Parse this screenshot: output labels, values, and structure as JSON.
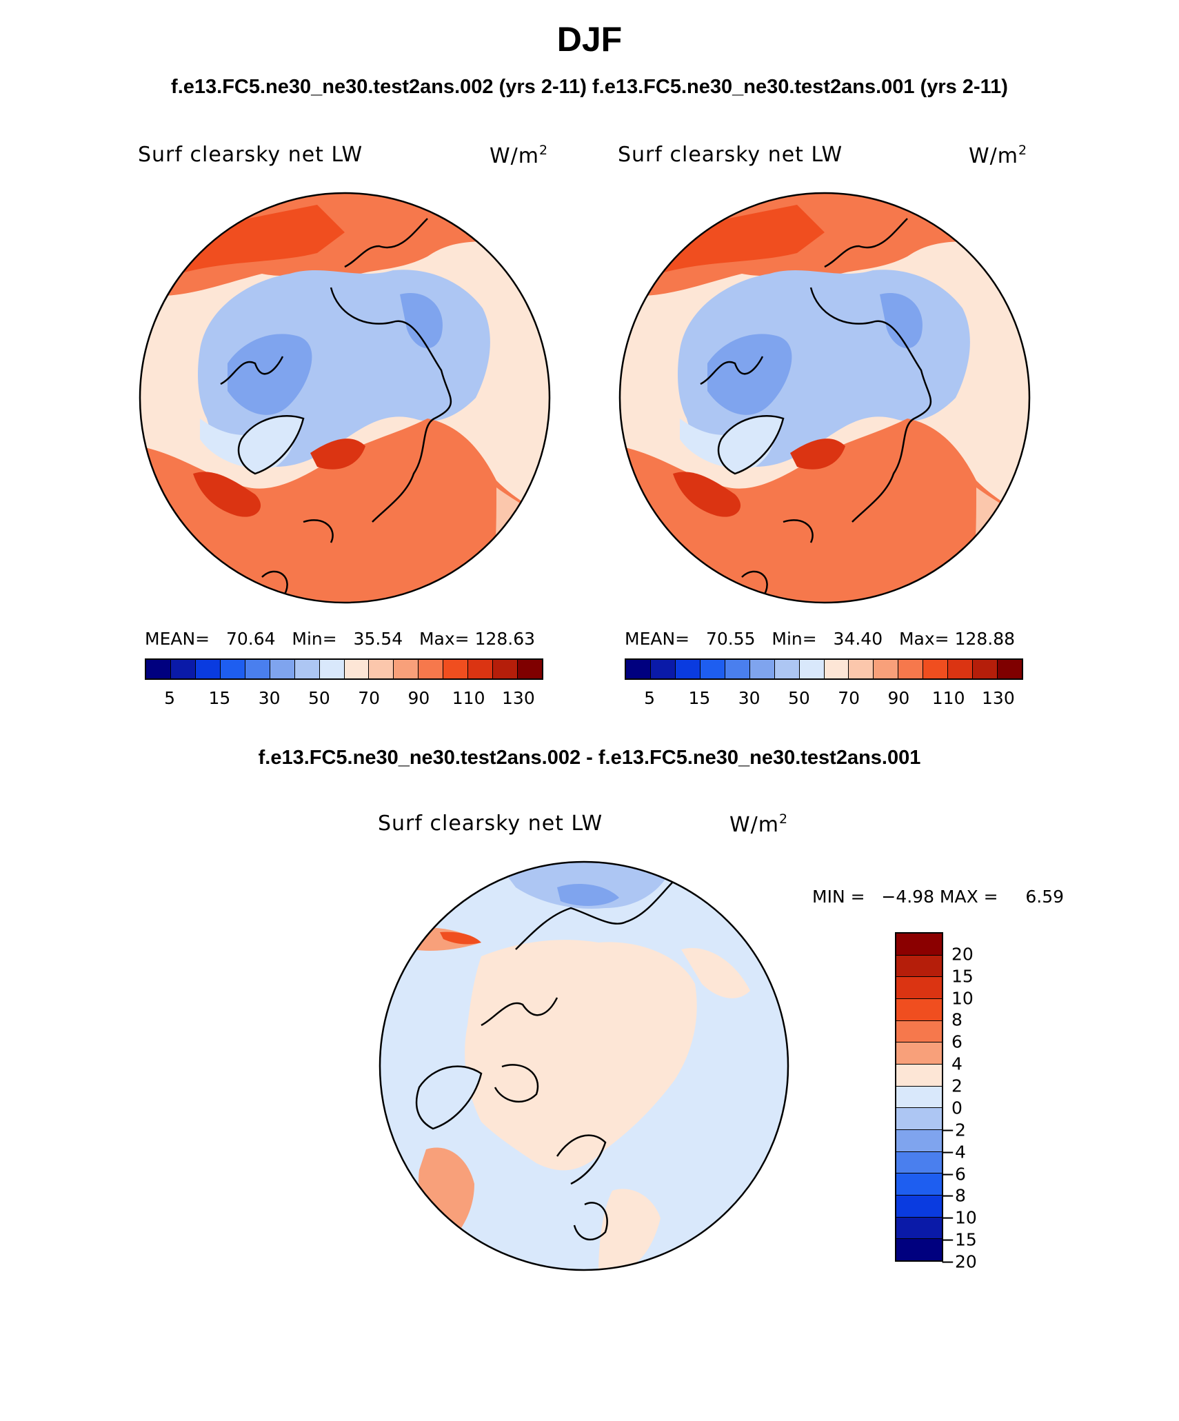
{
  "title": "DJF",
  "subtitle_top": "f.e13.FC5.ne30_ne30.test2ans.002 (yrs 2-11) f.e13.FC5.ne30_ne30.test2ans.001 (yrs 2-11)",
  "subtitle_diff": "f.e13.FC5.ne30_ne30.test2ans.002 - f.e13.FC5.ne30_ne30.test2ans.001",
  "panels": [
    {
      "variable": "Surf clearsky net LW",
      "units": "W/m",
      "units_exp": "2",
      "stats": {
        "mean_label": "MEAN=",
        "mean": "70.64",
        "min_label": "Min=",
        "min": "35.54",
        "max_label": "Max=",
        "max": "128.63"
      }
    },
    {
      "variable": "Surf clearsky net LW",
      "units": "W/m",
      "units_exp": "2",
      "stats": {
        "mean_label": "MEAN=",
        "mean": "70.55",
        "min_label": "Min=",
        "min": "34.40",
        "max_label": "Max=",
        "max": "128.88"
      }
    }
  ],
  "diff_panel": {
    "variable": "Surf clearsky net LW",
    "units": "W/m",
    "units_exp": "2",
    "minmax": "MIN =   −4.98 MAX =     6.59"
  },
  "colorbar_main": {
    "colors": [
      "#00007f",
      "#0a1aa8",
      "#0a3be0",
      "#1e5ef0",
      "#4a7fee",
      "#7fa4ee",
      "#adc6f3",
      "#d9e8fb",
      "#fde6d6",
      "#fbc7ac",
      "#f8a07a",
      "#f6784c",
      "#f04e1f",
      "#db3412",
      "#b51e0a",
      "#7f0000"
    ],
    "ticks": [
      "5",
      "15",
      "30",
      "50",
      "70",
      "90",
      "110",
      "130"
    ]
  },
  "colorbar_diff": {
    "colors": [
      "#8b0000",
      "#b51e0a",
      "#db3412",
      "#f04e1f",
      "#f6784c",
      "#f8a07a",
      "#fde6d6",
      "#d9e8fb",
      "#adc6f3",
      "#7fa4ee",
      "#4a7fee",
      "#1e5ef0",
      "#0a3be0",
      "#0a1aa8",
      "#00007f"
    ],
    "ticks": [
      "20",
      "15",
      "10",
      "8",
      "6",
      "4",
      "2",
      "0",
      "−2",
      "−4",
      "−6",
      "−8",
      "−10",
      "−15",
      "−20"
    ]
  }
}
